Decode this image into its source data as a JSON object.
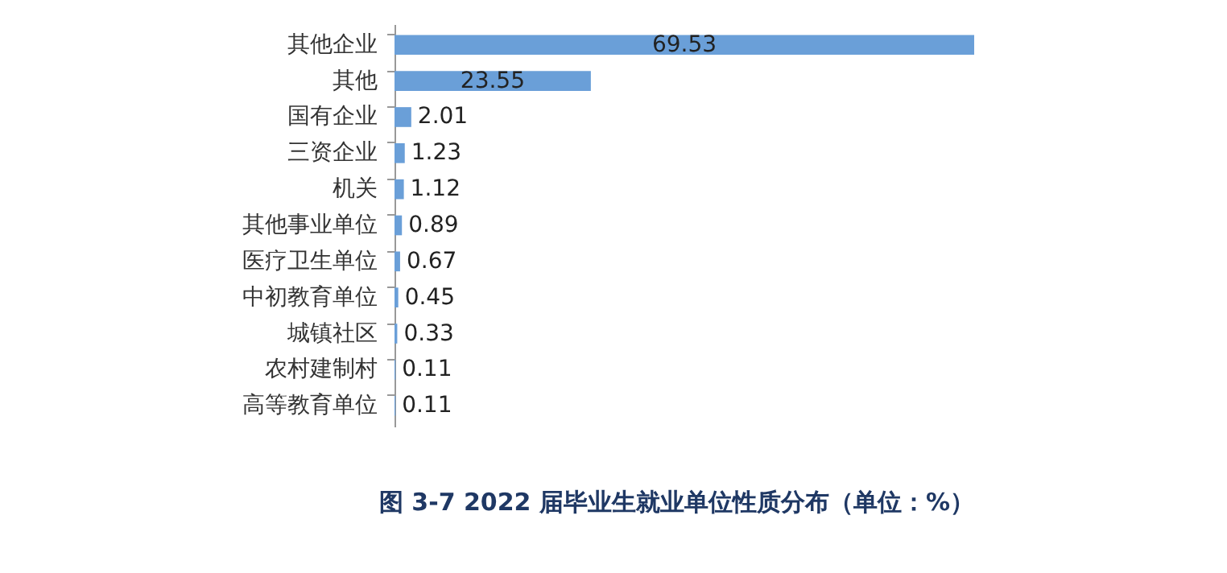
{
  "chart_data": {
    "type": "bar",
    "orientation": "horizontal",
    "title": "图 3-7  2022 届毕业生就业单位性质分布（单位：%）",
    "categories": [
      "其他企业",
      "其他",
      "国有企业",
      "三资企业",
      "机关",
      "其他事业单位",
      "医疗卫生单位",
      "中初教育单位",
      "城镇社区",
      "农村建制村",
      "高等教育单位"
    ],
    "values": [
      69.53,
      23.55,
      2.01,
      1.23,
      1.12,
      0.89,
      0.67,
      0.45,
      0.33,
      0.11,
      0.11
    ],
    "color": "#6a9fd8",
    "data_labels": true,
    "grid": false,
    "tick_labels": "y"
  }
}
